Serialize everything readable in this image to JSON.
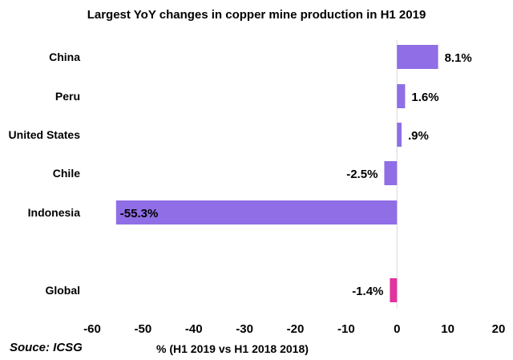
{
  "chart_data": {
    "type": "bar",
    "orientation": "horizontal",
    "title": "Largest YoY changes in copper mine production in H1 2019",
    "xlabel": "% (H1 2019 vs H1 2018 2018)",
    "source": "Souce: ICSG",
    "xlim": [
      -60,
      20
    ],
    "xticks": [
      "-60",
      "-50",
      "-40",
      "-30",
      "-20",
      "-10",
      "0",
      "10",
      "20"
    ],
    "grid": false,
    "legend": "none",
    "categories": [
      "China",
      "Peru",
      "United States",
      "Chile",
      "Indonesia",
      "Global"
    ],
    "values": [
      8.1,
      1.6,
      0.9,
      -2.5,
      -55.3,
      -1.4
    ],
    "data_labels": [
      "8.1%",
      "1.6%",
      ".9%",
      "-2.5%",
      "-55.3%",
      "-1.4%"
    ],
    "colors": [
      "#8f6ee6",
      "#8f6ee6",
      "#8f6ee6",
      "#8f6ee6",
      "#8f6ee6",
      "#e0339e"
    ]
  }
}
